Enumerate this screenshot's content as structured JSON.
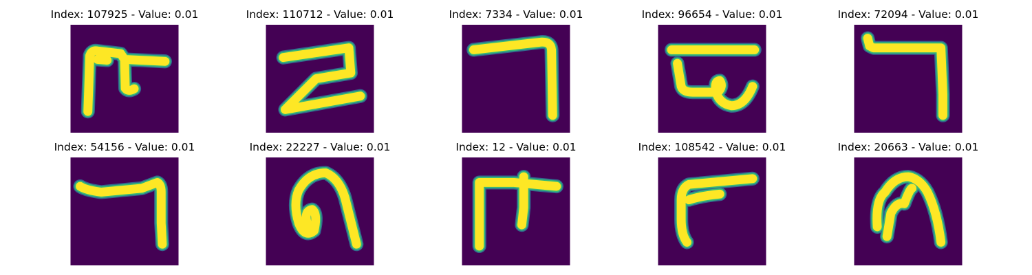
{
  "colors": {
    "background": "#440154",
    "stroke_core": "#fde725",
    "stroke_mid": "#35b779",
    "stroke_edge": "#31688e"
  },
  "panels": [
    {
      "title": "Index: 107925 - Value: 0.01",
      "glyph": "hook-t"
    },
    {
      "title": "Index: 110712 - Value: 0.01",
      "glyph": "z-shape"
    },
    {
      "title": "Index: 7334 - Value: 0.01",
      "glyph": "corner"
    },
    {
      "title": "Index: 96654 - Value: 0.01",
      "glyph": "bar-loop"
    },
    {
      "title": "Index: 72094 - Value: 0.01",
      "glyph": "corner-tall"
    },
    {
      "title": "Index: 54156 - Value: 0.01",
      "glyph": "corner-low"
    },
    {
      "title": "Index: 22227 - Value: 0.01",
      "glyph": "arch-curl"
    },
    {
      "title": "Index: 12 - Value: 0.01",
      "glyph": "hook-t-2"
    },
    {
      "title": "Index: 108542 - Value: 0.01",
      "glyph": "reverse-corner"
    },
    {
      "title": "Index: 20663 - Value: 0.01",
      "glyph": "arch"
    }
  ]
}
